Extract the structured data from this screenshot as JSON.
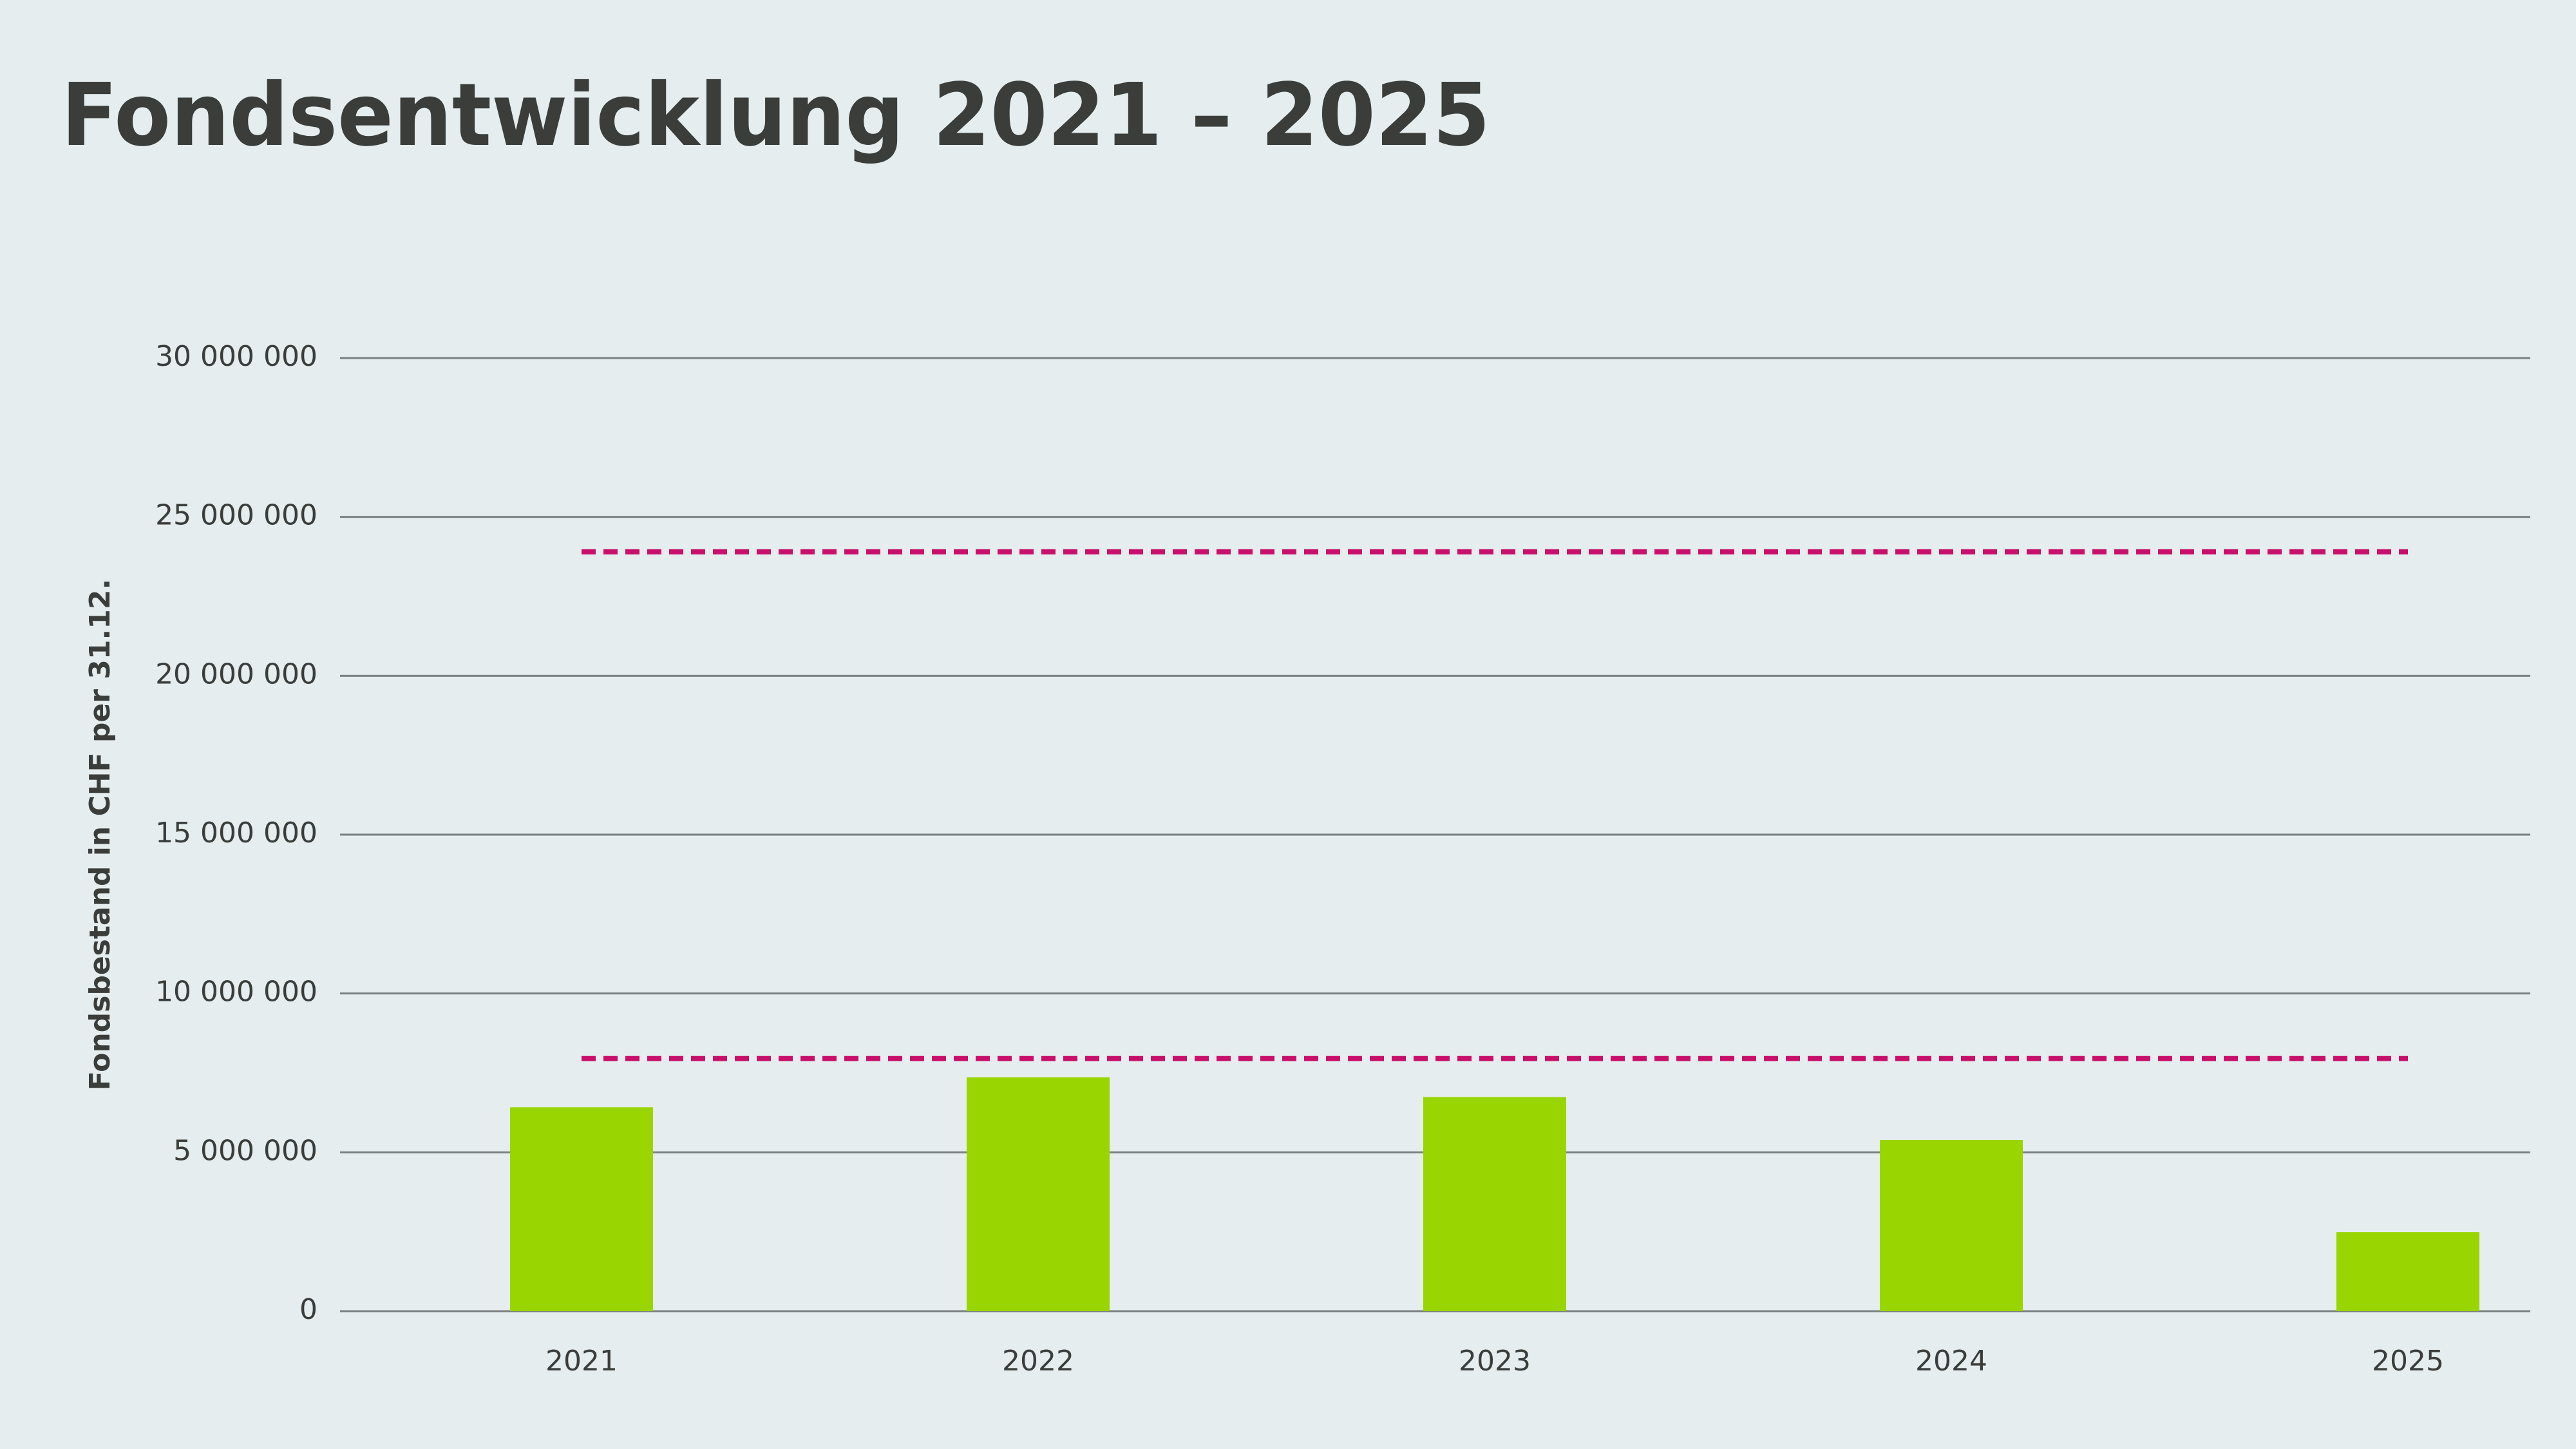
{
  "chart_data": {
    "type": "bar",
    "title": "Fondsentwicklung 2021 – 2025",
    "y_label": "Fondsbestand in CHF per 31.12.",
    "categories": [
      "2021",
      "2022",
      "2023",
      "2024",
      "2025"
    ],
    "values": [
      6420000,
      7360000,
      6740000,
      5390000,
      2490000
    ],
    "color": "#99d500",
    "ylim": [
      0,
      30000000
    ],
    "yticks": [
      0,
      {
        "value": 5000000,
        "label": "5 000 000"
      },
      {
        "value": 10000000,
        "label": "10 000 000"
      },
      {
        "value": 15000000,
        "label": "15 000 000"
      },
      {
        "value": 20000000,
        "label": "20 000 000"
      },
      {
        "value": 25000000,
        "label": "25 000 000"
      },
      {
        "value": 30000000,
        "label": "30 000 000"
      }
    ],
    "grid": true,
    "reference_lines": [
      {
        "value": 23900000,
        "color": "#c8106a"
      },
      {
        "value": 7950000,
        "color": "#c8106a"
      }
    ]
  }
}
